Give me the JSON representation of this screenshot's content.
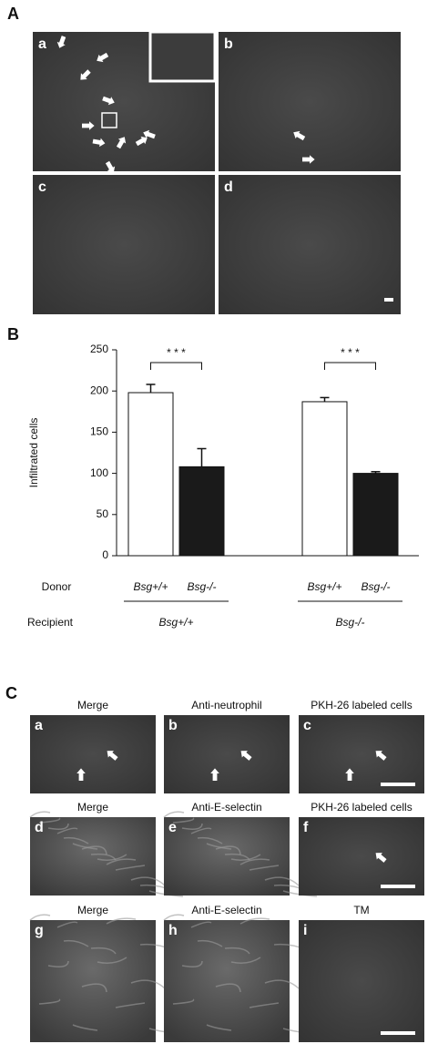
{
  "panel_a": {
    "label": "A",
    "letters": [
      "a",
      "b",
      "c",
      "d"
    ]
  },
  "chart_data": {
    "type": "bar",
    "panel_label": "B",
    "y_label": "Infiltrated cells",
    "categories": [
      "Bsg+/+",
      "Bsg-/-"
    ],
    "row_labels": [
      "Donor",
      "Recipient"
    ],
    "series": [
      {
        "name": "Bsg+/+",
        "color": "#ffffff",
        "values": [
          198,
          187
        ],
        "errors": [
          10,
          5
        ]
      },
      {
        "name": "Bsg-/-",
        "color": "#1a1a1a",
        "values": [
          108,
          100
        ],
        "errors": [
          22,
          2
        ]
      }
    ],
    "annotations": [
      "* * *",
      "* * *"
    ],
    "ylim": [
      0,
      250
    ],
    "yticks": [
      0,
      50,
      100,
      150,
      200,
      250
    ]
  },
  "panel_c": {
    "label": "C",
    "rows": [
      {
        "titles": [
          "Merge",
          "Anti-neutrophil",
          "PKH-26 labeled cells"
        ],
        "letters": [
          "a",
          "b",
          "c"
        ]
      },
      {
        "titles": [
          "Merge",
          "Anti-E-selectin",
          "PKH-26 labeled cells"
        ],
        "letters": [
          "d",
          "e",
          "f"
        ]
      },
      {
        "titles": [
          "Merge",
          "Anti-E-selectin",
          "TM"
        ],
        "letters": [
          "g",
          "h",
          "i"
        ]
      }
    ]
  }
}
